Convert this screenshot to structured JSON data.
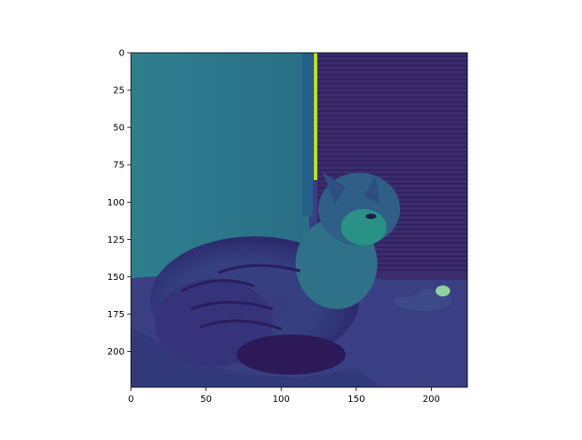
{
  "chart_data": {
    "type": "heatmap",
    "title": "",
    "xlabel": "",
    "ylabel": "",
    "xlim": [
      0,
      224
    ],
    "ylim": [
      224,
      0
    ],
    "x_ticks": [
      0,
      50,
      100,
      150,
      200
    ],
    "y_ticks": [
      0,
      25,
      50,
      75,
      100,
      125,
      150,
      175,
      200
    ],
    "colormap": "viridis",
    "image_content": "single-channel image of a long-haired cat lying on a bed in front of window blinds",
    "grid": false,
    "legend": "none"
  },
  "colors": {
    "wall": "#2c7b8d",
    "blinds": "#3b2c6e",
    "blinds_dark": "#2f1f5c",
    "bed": "#3a3f84",
    "bed_light": "#414a8b",
    "cat_body": "#3f4685",
    "cat_dark": "#2b1a57",
    "cat_light": "#2a9186",
    "highlight": "#b5de2b"
  }
}
